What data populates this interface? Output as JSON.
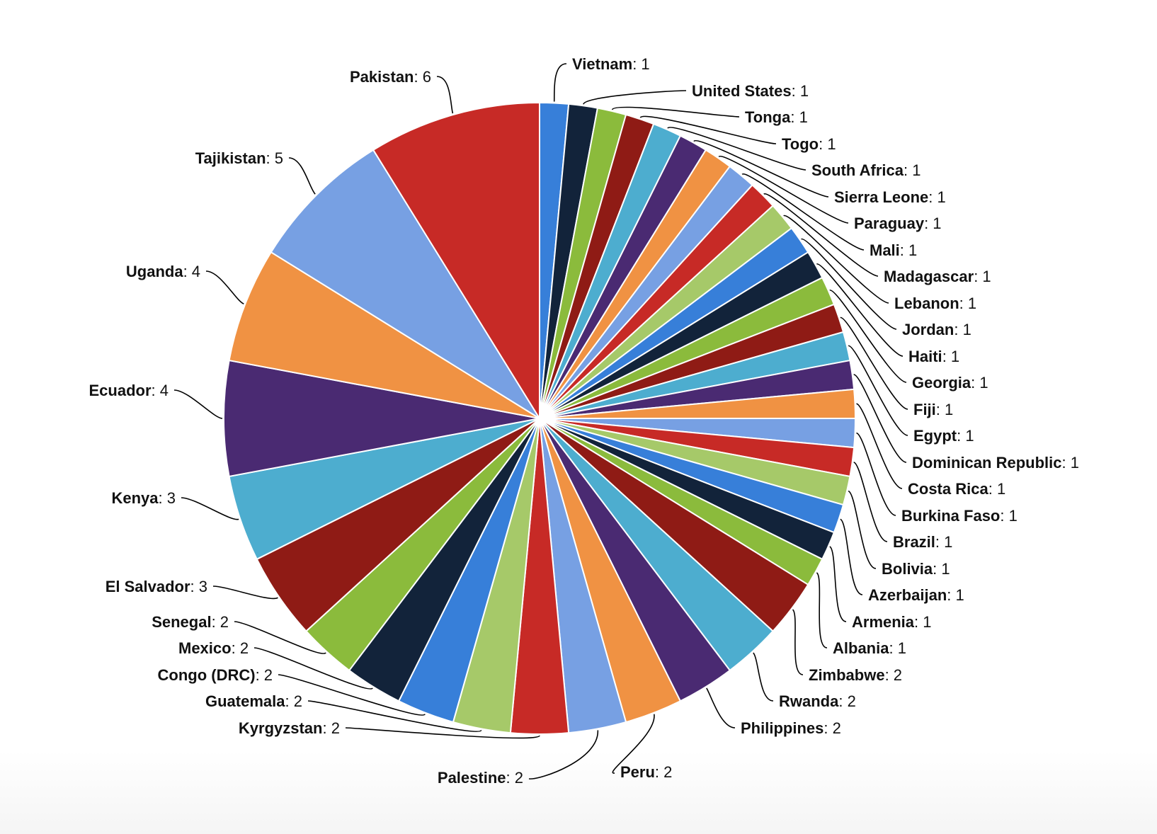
{
  "chart_data": {
    "type": "pie",
    "title": "",
    "slices": [
      {
        "name": "Vietnam",
        "value": 1,
        "color": "#377fd9"
      },
      {
        "name": "United States",
        "value": 1,
        "color": "#12233a"
      },
      {
        "name": "Tonga",
        "value": 1,
        "color": "#8bbb3c"
      },
      {
        "name": "Togo",
        "value": 1,
        "color": "#8f1b15"
      },
      {
        "name": "South Africa",
        "value": 1,
        "color": "#4dadcf"
      },
      {
        "name": "Sierra Leone",
        "value": 1,
        "color": "#4a2a72"
      },
      {
        "name": "Paraguay",
        "value": 1,
        "color": "#f09243"
      },
      {
        "name": "Mali",
        "value": 1,
        "color": "#77a0e3"
      },
      {
        "name": "Madagascar",
        "value": 1,
        "color": "#c72a26"
      },
      {
        "name": "Lebanon",
        "value": 1,
        "color": "#a6c969"
      },
      {
        "name": "Jordan",
        "value": 1,
        "color": "#377fd9"
      },
      {
        "name": "Haiti",
        "value": 1,
        "color": "#12233a"
      },
      {
        "name": "Georgia",
        "value": 1,
        "color": "#8bbb3c"
      },
      {
        "name": "Fiji",
        "value": 1,
        "color": "#8f1b15"
      },
      {
        "name": "Egypt",
        "value": 1,
        "color": "#4dadcf"
      },
      {
        "name": "Dominican Republic",
        "value": 1,
        "color": "#4a2a72"
      },
      {
        "name": "Costa Rica",
        "value": 1,
        "color": "#f09243"
      },
      {
        "name": "Burkina Faso",
        "value": 1,
        "color": "#77a0e3"
      },
      {
        "name": "Brazil",
        "value": 1,
        "color": "#c72a26"
      },
      {
        "name": "Bolivia",
        "value": 1,
        "color": "#a6c969"
      },
      {
        "name": "Azerbaijan",
        "value": 1,
        "color": "#377fd9"
      },
      {
        "name": "Armenia",
        "value": 1,
        "color": "#12233a"
      },
      {
        "name": "Albania",
        "value": 1,
        "color": "#8bbb3c"
      },
      {
        "name": "Zimbabwe",
        "value": 2,
        "color": "#8f1b15"
      },
      {
        "name": "Rwanda",
        "value": 2,
        "color": "#4dadcf"
      },
      {
        "name": "Philippines",
        "value": 2,
        "color": "#4a2a72"
      },
      {
        "name": "Peru",
        "value": 2,
        "color": "#f09243"
      },
      {
        "name": "Palestine",
        "value": 2,
        "color": "#77a0e3"
      },
      {
        "name": "Kyrgyzstan",
        "value": 2,
        "color": "#c72a26"
      },
      {
        "name": "Guatemala",
        "value": 2,
        "color": "#a6c969"
      },
      {
        "name": "Congo (DRC)",
        "value": 2,
        "color": "#377fd9"
      },
      {
        "name": "Mexico",
        "value": 2,
        "color": "#12233a"
      },
      {
        "name": "Senegal",
        "value": 2,
        "color": "#8bbb3c"
      },
      {
        "name": "El Salvador",
        "value": 3,
        "color": "#8f1b15"
      },
      {
        "name": "Kenya",
        "value": 3,
        "color": "#4dadcf"
      },
      {
        "name": "Ecuador",
        "value": 4,
        "color": "#4a2a72"
      },
      {
        "name": "Uganda",
        "value": 4,
        "color": "#f09243"
      },
      {
        "name": "Tajikistan",
        "value": 5,
        "color": "#77a0e3"
      },
      {
        "name": "Pakistan",
        "value": 6,
        "color": "#c72a26"
      }
    ],
    "label_format": "{name}: {value}",
    "legend": "none"
  }
}
